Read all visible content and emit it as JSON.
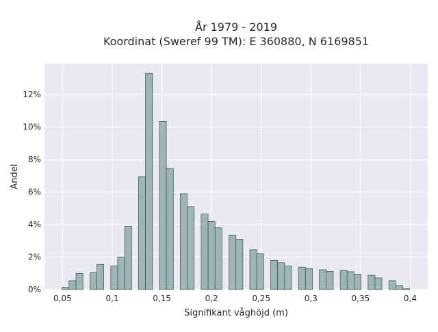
{
  "chart_data": {
    "type": "bar",
    "title_line1": "År 1979 - 2019",
    "title_line2": "Koordinat (Sweref 99 TM): E 360880, N 6169851",
    "xlabel": "Signifikant våghöjd (m)",
    "ylabel": "Andel",
    "x_ticks": [
      "0,05",
      "0,1",
      "0,15",
      "0,2",
      "0,25",
      "0,3",
      "0,35",
      "0,4"
    ],
    "x_tick_values": [
      0.05,
      0.1,
      0.15,
      0.2,
      0.25,
      0.3,
      0.35,
      0.4
    ],
    "y_ticks": [
      "0%",
      "2%",
      "4%",
      "6%",
      "8%",
      "10%",
      "12%"
    ],
    "y_tick_values": [
      0,
      2,
      4,
      6,
      8,
      10,
      12
    ],
    "xlim": [
      0.0318,
      0.4176
    ],
    "ylim": [
      0,
      13.9
    ],
    "bin_width": 0.007,
    "bins": [
      {
        "x": 0.053,
        "y": 0.15
      },
      {
        "x": 0.06,
        "y": 0.55
      },
      {
        "x": 0.067,
        "y": 1.0
      },
      {
        "x": 0.081,
        "y": 1.05
      },
      {
        "x": 0.088,
        "y": 1.55
      },
      {
        "x": 0.102,
        "y": 1.45
      },
      {
        "x": 0.109,
        "y": 2.0
      },
      {
        "x": 0.116,
        "y": 3.9
      },
      {
        "x": 0.13,
        "y": 6.95
      },
      {
        "x": 0.137,
        "y": 13.3
      },
      {
        "x": 0.151,
        "y": 10.35
      },
      {
        "x": 0.158,
        "y": 7.45
      },
      {
        "x": 0.172,
        "y": 5.9
      },
      {
        "x": 0.179,
        "y": 5.1
      },
      {
        "x": 0.193,
        "y": 4.65
      },
      {
        "x": 0.2,
        "y": 4.2
      },
      {
        "x": 0.207,
        "y": 3.8
      },
      {
        "x": 0.221,
        "y": 3.35
      },
      {
        "x": 0.228,
        "y": 3.1
      },
      {
        "x": 0.242,
        "y": 2.45
      },
      {
        "x": 0.249,
        "y": 2.2
      },
      {
        "x": 0.263,
        "y": 1.8
      },
      {
        "x": 0.27,
        "y": 1.65
      },
      {
        "x": 0.277,
        "y": 1.45
      },
      {
        "x": 0.291,
        "y": 1.38
      },
      {
        "x": 0.298,
        "y": 1.28
      },
      {
        "x": 0.312,
        "y": 1.22
      },
      {
        "x": 0.319,
        "y": 1.12
      },
      {
        "x": 0.333,
        "y": 1.18
      },
      {
        "x": 0.34,
        "y": 1.1
      },
      {
        "x": 0.347,
        "y": 0.95
      },
      {
        "x": 0.361,
        "y": 0.88
      },
      {
        "x": 0.368,
        "y": 0.72
      },
      {
        "x": 0.382,
        "y": 0.55
      },
      {
        "x": 0.389,
        "y": 0.25
      },
      {
        "x": 0.396,
        "y": 0.05
      }
    ],
    "grid": true,
    "colors": {
      "background": "#e9eaf2",
      "bar_fill": "#9db5b5",
      "bar_edge": "#3e4a4a",
      "grid": "#ffffff"
    }
  }
}
